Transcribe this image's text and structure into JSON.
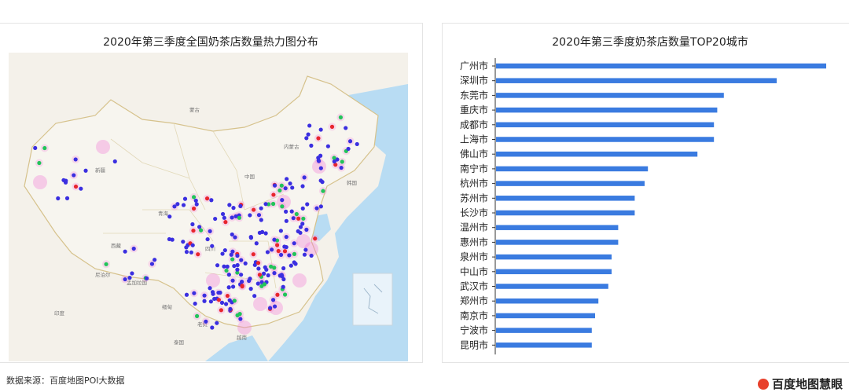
{
  "source_note": "数据来源：百度地图POI大数据",
  "logo_text": "百度地图慧眼",
  "colors": {
    "bar": "#3a7be0",
    "sea": "#b8dcf3",
    "land": "#f4f1ea",
    "border": "#d6c28c",
    "dot_low": "#3b2fe0",
    "dot_mid": "#22c45a",
    "dot_high": "#e8252e",
    "glow": "#f27ad8"
  },
  "left_chart": {
    "title": "2020年第三季度全国奶茶店数量热力图分布",
    "map_labels": [
      "蒙古",
      "新疆",
      "内蒙古",
      "青海",
      "西藏",
      "四川",
      "韩国",
      "印度",
      "缅甸",
      "老挝",
      "泰国",
      "孟加拉国",
      "尼泊尔",
      "越南",
      "中国"
    ]
  },
  "chart_data": {
    "type": "bar",
    "orientation": "horizontal",
    "title": "2020年第三季度奶茶店数量TOP20城市",
    "categories": [
      "广州市",
      "深圳市",
      "东莞市",
      "重庆市",
      "成都市",
      "上海市",
      "佛山市",
      "南宁市",
      "杭州市",
      "苏州市",
      "长沙市",
      "温州市",
      "惠州市",
      "泉州市",
      "中山市",
      "武汉市",
      "郑州市",
      "南京市",
      "宁波市",
      "昆明市"
    ],
    "values": [
      100,
      85,
      69,
      67,
      66,
      66,
      61,
      46,
      45,
      42,
      42,
      37,
      37,
      35,
      35,
      34,
      31,
      30,
      29,
      29
    ],
    "xlabel": "",
    "ylabel": "",
    "grid": false,
    "legend": "none"
  }
}
